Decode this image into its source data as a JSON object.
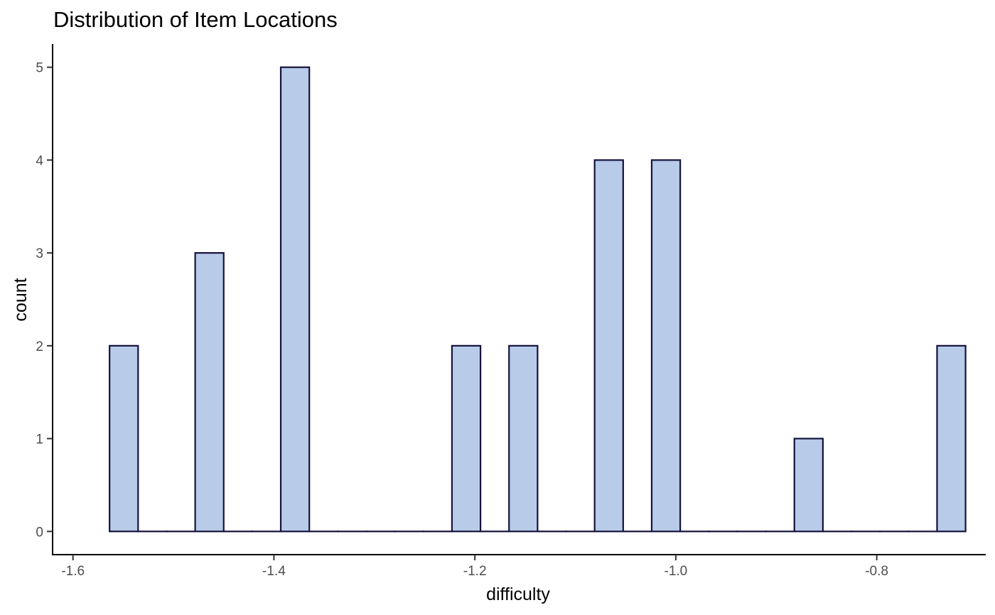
{
  "chart_data": {
    "type": "bar",
    "subtype": "histogram",
    "title": "Distribution of Item Locations",
    "xlabel": "difficulty",
    "ylabel": "count",
    "xlim": [
      -1.6203,
      -0.6915
    ],
    "ylim": [
      -0.25,
      5.25
    ],
    "x_ticks": [
      -1.6,
      -1.4,
      -1.2,
      -1.0,
      -0.8
    ],
    "x_tick_labels": [
      "-1.6",
      "-1.4",
      "-1.2",
      "-1.0",
      "-0.8"
    ],
    "y_ticks": [
      0,
      1,
      2,
      3,
      4,
      5
    ],
    "y_tick_labels": [
      "0",
      "1",
      "2",
      "3",
      "4",
      "5"
    ],
    "bin_width": 0.0284,
    "bins_start": [
      -1.5636,
      -1.5352,
      -1.5068,
      -1.4784,
      -1.45,
      -1.4216,
      -1.3932,
      -1.3648,
      -1.3364,
      -1.308,
      -1.2796,
      -1.2512,
      -1.2228,
      -1.1944,
      -1.166,
      -1.1376,
      -1.1092,
      -1.0808,
      -1.0524,
      -1.024,
      -0.9956,
      -0.9672,
      -0.9388,
      -0.9104,
      -0.882,
      -0.8536,
      -0.8252,
      -0.7968,
      -0.7684,
      -0.74
    ],
    "counts": [
      2,
      0,
      0,
      3,
      0,
      0,
      5,
      0,
      0,
      0,
      0,
      0,
      2,
      0,
      2,
      0,
      0,
      4,
      0,
      4,
      0,
      0,
      0,
      0,
      1,
      0,
      0,
      0,
      0,
      2
    ],
    "fill_color": "#b8cbe9",
    "edge_color": "#15133d",
    "grid": false,
    "legend": "none"
  }
}
